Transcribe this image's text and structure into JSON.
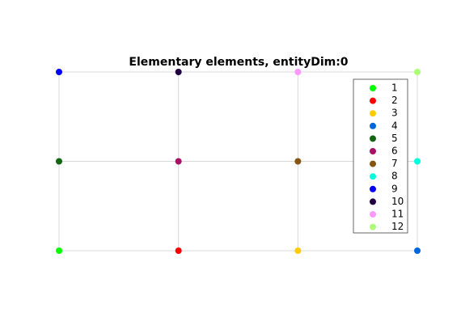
{
  "chart_data": {
    "type": "scatter",
    "title": "Elementary elements, entityDim:0",
    "xlim": [
      0,
      3
    ],
    "ylim": [
      0,
      2
    ],
    "series": [
      {
        "name": "1",
        "color": "#00ff00",
        "x": [
          0
        ],
        "values": [
          0
        ]
      },
      {
        "name": "2",
        "color": "#ff0000",
        "x": [
          1
        ],
        "values": [
          0
        ]
      },
      {
        "name": "3",
        "color": "#ffcc00",
        "x": [
          2
        ],
        "values": [
          0
        ]
      },
      {
        "name": "4",
        "color": "#0066dd",
        "x": [
          3
        ],
        "values": [
          0
        ]
      },
      {
        "name": "5",
        "color": "#116611",
        "x": [
          0
        ],
        "values": [
          1
        ]
      },
      {
        "name": "6",
        "color": "#aa1166",
        "x": [
          1
        ],
        "values": [
          1
        ]
      },
      {
        "name": "7",
        "color": "#885511",
        "x": [
          2
        ],
        "values": [
          1
        ]
      },
      {
        "name": "8",
        "color": "#00ffdd",
        "x": [
          3
        ],
        "values": [
          1
        ]
      },
      {
        "name": "9",
        "color": "#0000ff",
        "x": [
          0
        ],
        "values": [
          2
        ]
      },
      {
        "name": "10",
        "color": "#220044",
        "x": [
          1
        ],
        "values": [
          2
        ]
      },
      {
        "name": "11",
        "color": "#ff99ff",
        "x": [
          2
        ],
        "values": [
          2
        ]
      },
      {
        "name": "12",
        "color": "#aaff77",
        "x": [
          3
        ],
        "values": [
          2
        ]
      }
    ]
  }
}
